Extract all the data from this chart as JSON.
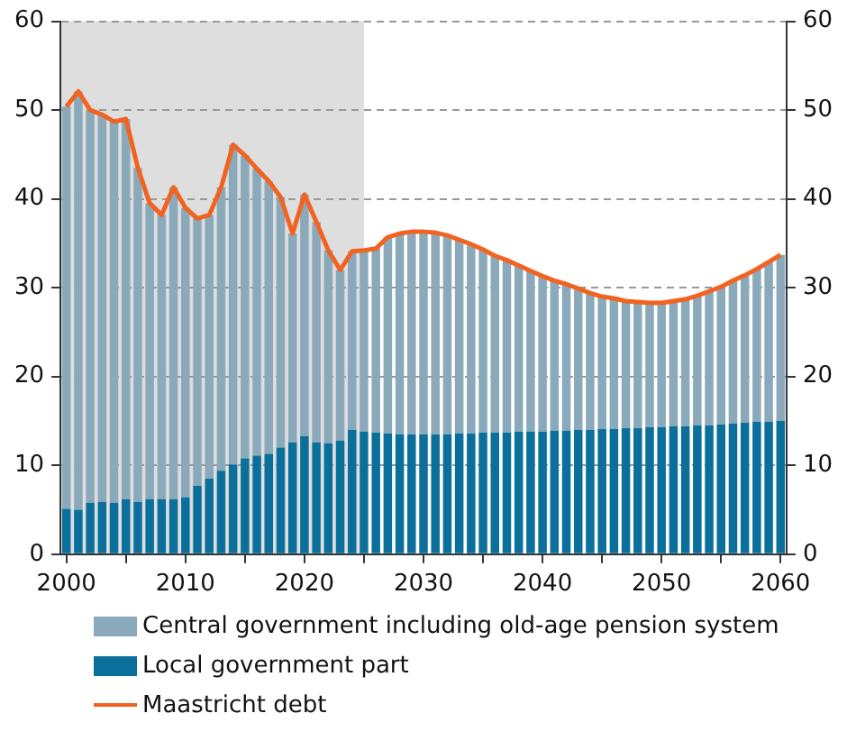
{
  "chart_data": {
    "type": "bar",
    "stacked": true,
    "legend": "bottom",
    "grid": "y",
    "marker": "none",
    "x": [
      2000,
      2001,
      2002,
      2003,
      2004,
      2005,
      2006,
      2007,
      2008,
      2009,
      2010,
      2011,
      2012,
      2013,
      2014,
      2015,
      2016,
      2017,
      2018,
      2019,
      2020,
      2021,
      2022,
      2023,
      2024,
      2025,
      2026,
      2027,
      2028,
      2029,
      2030,
      2031,
      2032,
      2033,
      2034,
      2035,
      2036,
      2037,
      2038,
      2039,
      2040,
      2041,
      2042,
      2043,
      2044,
      2045,
      2046,
      2047,
      2048,
      2049,
      2050,
      2051,
      2052,
      2053,
      2054,
      2055,
      2056,
      2057,
      2058,
      2059,
      2060
    ],
    "series": [
      {
        "name": "Local government part",
        "color": "#0b6f9c",
        "values": [
          5.1,
          5.0,
          5.8,
          5.9,
          5.8,
          6.2,
          5.9,
          6.2,
          6.2,
          6.2,
          6.4,
          7.7,
          8.5,
          9.4,
          10.1,
          10.8,
          11.1,
          11.3,
          12.0,
          12.6,
          13.3,
          12.6,
          12.5,
          12.8,
          14.0,
          13.8,
          13.7,
          13.6,
          13.5,
          13.5,
          13.5,
          13.5,
          13.5,
          13.6,
          13.6,
          13.7,
          13.7,
          13.7,
          13.8,
          13.8,
          13.8,
          13.9,
          13.9,
          14.0,
          14.0,
          14.1,
          14.1,
          14.2,
          14.2,
          14.3,
          14.3,
          14.4,
          14.4,
          14.5,
          14.5,
          14.6,
          14.7,
          14.8,
          14.9,
          14.9,
          15.0
        ]
      },
      {
        "name": "Central government including old-age pension system",
        "color": "#8aaabb",
        "values": [
          45.3,
          47.1,
          44.2,
          43.6,
          42.9,
          42.8,
          37.6,
          33.3,
          32.0,
          35.1,
          32.6,
          30.1,
          29.7,
          31.9,
          36.0,
          34.1,
          32.3,
          30.7,
          28.2,
          23.5,
          27.2,
          24.8,
          21.7,
          19.2,
          20.1,
          20.4,
          20.7,
          22.1,
          22.6,
          22.8,
          22.8,
          22.7,
          22.4,
          21.8,
          21.3,
          20.6,
          19.9,
          19.4,
          18.7,
          18.1,
          17.5,
          16.9,
          16.5,
          15.9,
          15.4,
          14.9,
          14.7,
          14.3,
          14.2,
          14.0,
          14.0,
          14.1,
          14.3,
          14.6,
          15.1,
          15.5,
          16.1,
          16.6,
          17.2,
          18.0,
          18.7
        ]
      },
      {
        "name": "Maastricht debt",
        "type": "line",
        "color": "#f26322",
        "values": [
          50.4,
          52.1,
          50.0,
          49.5,
          48.7,
          49.0,
          43.5,
          39.5,
          38.2,
          41.3,
          39.0,
          37.8,
          38.2,
          41.3,
          46.1,
          44.9,
          43.4,
          42.0,
          40.2,
          36.1,
          40.5,
          37.4,
          34.2,
          32.0,
          34.1,
          34.2,
          34.4,
          35.7,
          36.1,
          36.3,
          36.3,
          36.2,
          35.9,
          35.4,
          34.9,
          34.3,
          33.6,
          33.1,
          32.5,
          31.9,
          31.3,
          30.8,
          30.4,
          29.9,
          29.4,
          29.0,
          28.8,
          28.5,
          28.4,
          28.3,
          28.3,
          28.5,
          28.7,
          29.1,
          29.6,
          30.1,
          30.8,
          31.4,
          32.1,
          32.9,
          33.7
        ]
      }
    ],
    "xlim": [
      1999.5,
      2060.5
    ],
    "xticks": [
      {
        "value": 2000,
        "label": "2000"
      },
      {
        "value": 2005,
        "label": null
      },
      {
        "value": 2010,
        "label": "2010"
      },
      {
        "value": 2015,
        "label": null
      },
      {
        "value": 2020,
        "label": "2020"
      },
      {
        "value": 2025,
        "label": null
      },
      {
        "value": 2030,
        "label": "2030"
      },
      {
        "value": 2035,
        "label": null
      },
      {
        "value": 2040,
        "label": "2040"
      },
      {
        "value": 2045,
        "label": null
      },
      {
        "value": 2050,
        "label": "2050"
      },
      {
        "value": 2055,
        "label": null
      },
      {
        "value": 2060,
        "label": "2060"
      }
    ],
    "ylim": [
      0,
      60
    ],
    "yticks": [
      0,
      10,
      20,
      30,
      40,
      50,
      60
    ],
    "y2lim": [
      0,
      60
    ],
    "y2ticks": [
      0,
      10,
      20,
      30,
      40,
      50,
      60
    ],
    "bands": [
      {
        "axis": "x",
        "from": 1999.5,
        "to": 2025,
        "color": "#dedede"
      }
    ]
  }
}
